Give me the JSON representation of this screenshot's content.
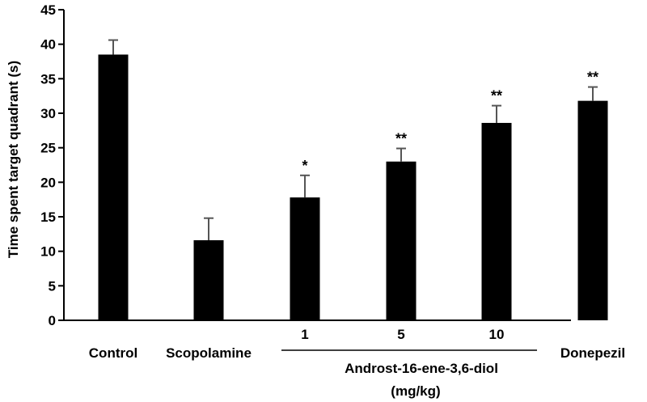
{
  "chart_data": {
    "type": "bar",
    "ylabel": "Time spent target quadrant (s)",
    "ylim": [
      0,
      45
    ],
    "yticks": [
      0,
      5,
      10,
      15,
      20,
      25,
      30,
      35,
      40,
      45
    ],
    "categories": [
      "Control",
      "Scopolamine",
      "1",
      "5",
      "10",
      "Donepezil"
    ],
    "values": [
      38.5,
      11.6,
      17.8,
      23.0,
      28.6,
      31.8
    ],
    "errors": [
      2.1,
      3.2,
      3.2,
      1.9,
      2.5,
      2.0
    ],
    "significance": [
      "",
      "",
      "*",
      "**",
      "**",
      "**"
    ],
    "group_label_line1": "Androst-16-ene-3,6-diol",
    "group_label_line2": "(mg/kg)",
    "bar_color": "#000000",
    "error_color": "#555555",
    "grid": false,
    "legend": "none"
  }
}
